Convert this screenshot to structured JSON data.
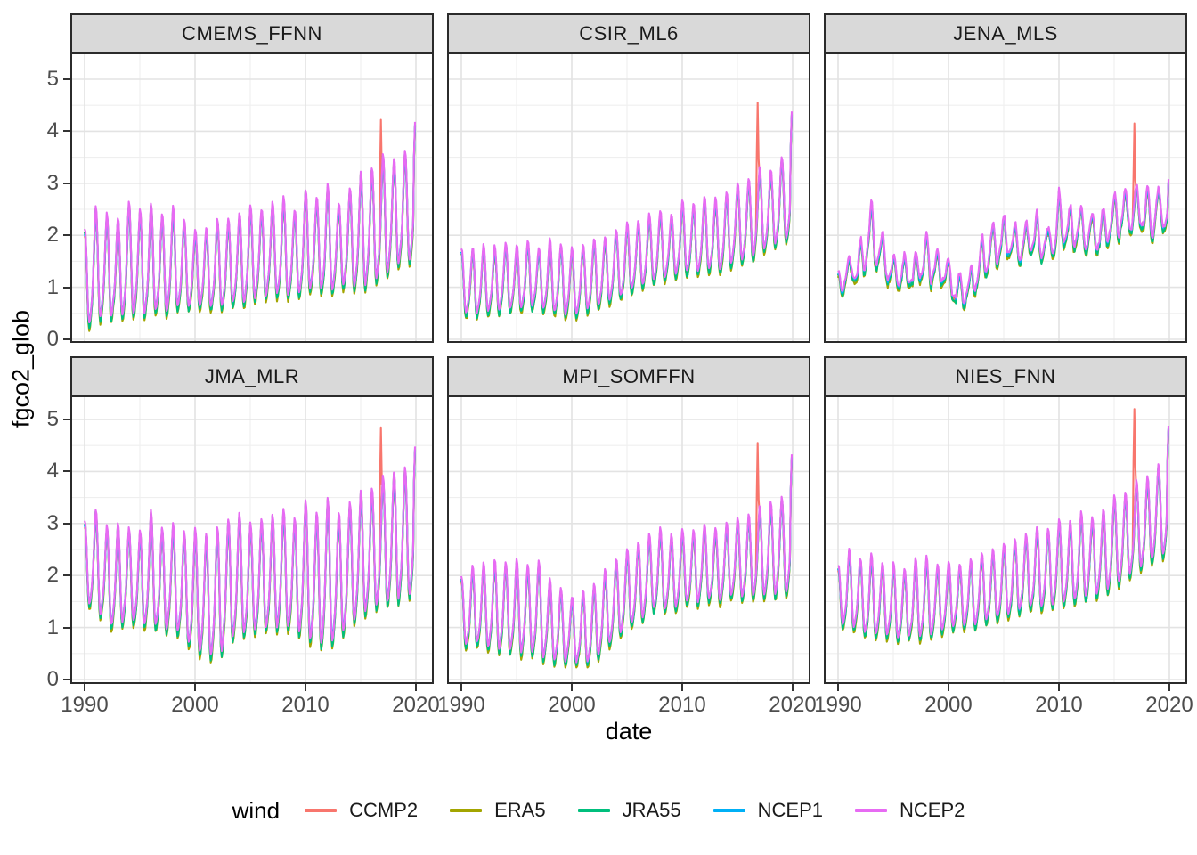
{
  "chart_data": {
    "type": "line",
    "title": "",
    "xlabel": "date",
    "ylabel": "fgco2_glob",
    "x_ticks": [
      1990,
      2000,
      2010,
      2020
    ],
    "x_minor": [
      1995,
      2005,
      2015
    ],
    "y_ticks": [
      0,
      1,
      2,
      3,
      4,
      5
    ],
    "y_minor": [
      0.5,
      1.5,
      2.5,
      3.5,
      4.5,
      5.5
    ],
    "xlim": [
      1988.7,
      2021.6
    ],
    "ylim": [
      -0.07,
      5.51
    ],
    "x_data_range": [
      1990,
      2020
    ],
    "sampling": "monthly",
    "grid": true,
    "legend": {
      "title": "wind",
      "position": "bottom"
    },
    "style": {
      "grid_major": "#E3E3E3",
      "grid_minor": "#EFEFEF",
      "strip_fill": "#D9D9D9",
      "panel_border": "#2B2B2B",
      "tick_color": "#333333",
      "axis_text_color": "#4D4D4D",
      "panel_background": "#FFFFFF"
    },
    "series": [
      {
        "name": "CCMP2",
        "color": "#F8766D",
        "amp_scale": 0.95,
        "offset": -0.05,
        "jitter": 0.03
      },
      {
        "name": "ERA5",
        "color": "#A3A500",
        "amp_scale": 1.04,
        "offset": -0.07,
        "jitter": 0.02
      },
      {
        "name": "JRA55",
        "color": "#00BF7D",
        "amp_scale": 1.02,
        "offset": -0.045,
        "jitter": 0.025
      },
      {
        "name": "NCEP1",
        "color": "#00B0F6",
        "amp_scale": 0.94,
        "offset": -0.005,
        "jitter": 0.015
      },
      {
        "name": "NCEP2",
        "color": "#E76BF3",
        "amp_scale": 1.0,
        "offset": 0.03,
        "jitter": 0.015
      }
    ],
    "facets": [
      {
        "label": "CMEMS_FFNN",
        "annual_max": [
          2.1,
          2.55,
          2.4,
          2.35,
          2.65,
          2.5,
          2.6,
          2.4,
          2.55,
          2.3,
          2.1,
          2.15,
          2.3,
          2.3,
          2.4,
          2.55,
          2.5,
          2.65,
          2.75,
          2.45,
          2.9,
          2.7,
          2.95,
          2.6,
          2.9,
          3.2,
          3.3,
          3.55,
          3.45,
          3.6
        ],
        "annual_min": [
          0.25,
          0.35,
          0.45,
          0.4,
          0.5,
          0.4,
          0.55,
          0.5,
          0.55,
          0.6,
          0.65,
          0.6,
          0.6,
          0.7,
          0.65,
          0.75,
          0.8,
          0.85,
          0.8,
          0.85,
          0.9,
          1.0,
          0.85,
          1.0,
          1.05,
          0.95,
          1.1,
          1.2,
          1.35,
          1.5
        ],
        "spike_value": 4.22,
        "spike_month_index": 322,
        "end_value": 4.15,
        "noise": 0.05,
        "season_weight": 1.0
      },
      {
        "label": "CSIR_ML6",
        "annual_max": [
          1.7,
          1.75,
          1.8,
          1.75,
          1.85,
          1.8,
          1.9,
          1.75,
          1.9,
          1.8,
          1.75,
          1.8,
          1.9,
          2.0,
          2.1,
          2.2,
          2.25,
          2.4,
          2.45,
          2.4,
          2.7,
          2.6,
          2.75,
          2.7,
          2.8,
          3.0,
          3.1,
          3.3,
          3.2,
          3.5
        ],
        "annual_min": [
          0.5,
          0.45,
          0.55,
          0.5,
          0.6,
          0.55,
          0.65,
          0.6,
          0.55,
          0.5,
          0.45,
          0.5,
          0.6,
          0.7,
          0.8,
          0.9,
          1.0,
          1.1,
          1.15,
          1.2,
          1.3,
          1.25,
          1.35,
          1.3,
          1.4,
          1.5,
          1.55,
          1.7,
          1.75,
          1.9
        ],
        "spike_value": 4.55,
        "spike_month_index": 322,
        "end_value": 4.35,
        "noise": 0.05,
        "season_weight": 1.0
      },
      {
        "label": "JENA_MLS",
        "annual_max": [
          1.3,
          1.6,
          1.9,
          2.75,
          2.1,
          1.7,
          1.6,
          1.75,
          2.1,
          1.8,
          1.6,
          1.2,
          1.5,
          2.0,
          2.3,
          2.4,
          2.2,
          2.3,
          2.5,
          2.2,
          2.9,
          2.7,
          2.8,
          2.5,
          2.6,
          2.9,
          3.0,
          3.1,
          2.9,
          3.0
        ],
        "annual_min": [
          0.85,
          1.0,
          1.1,
          1.4,
          1.2,
          1.0,
          0.95,
          1.0,
          1.1,
          1.0,
          0.9,
          0.6,
          0.7,
          1.1,
          1.4,
          1.5,
          1.4,
          1.5,
          1.6,
          1.4,
          1.7,
          1.6,
          1.7,
          1.6,
          1.65,
          1.8,
          1.9,
          2.0,
          1.9,
          2.0
        ],
        "spike_value": 4.15,
        "spike_month_index": 322,
        "end_value": 3.05,
        "noise": 0.18,
        "season_weight": 0.8
      },
      {
        "label": "JMA_MLR",
        "annual_max": [
          3.05,
          3.3,
          2.95,
          3.0,
          2.9,
          2.85,
          3.25,
          2.9,
          3.0,
          2.85,
          2.9,
          2.8,
          2.95,
          3.1,
          3.2,
          3.0,
          3.1,
          3.2,
          3.3,
          3.1,
          3.45,
          3.2,
          3.5,
          3.2,
          3.4,
          3.6,
          3.7,
          3.9,
          4.0,
          4.1
        ],
        "annual_min": [
          1.5,
          1.35,
          1.1,
          1.0,
          1.2,
          0.95,
          1.1,
          0.9,
          1.0,
          0.75,
          0.55,
          0.5,
          0.35,
          0.8,
          0.85,
          0.9,
          1.0,
          0.95,
          1.05,
          0.9,
          0.85,
          0.65,
          0.7,
          0.75,
          1.1,
          1.2,
          1.35,
          1.5,
          1.45,
          1.6
        ],
        "spike_value": 4.85,
        "spike_month_index": 322,
        "end_value": 4.45,
        "noise": 0.05,
        "season_weight": 1.0
      },
      {
        "label": "MPI_SOMFFN",
        "annual_max": [
          1.95,
          2.15,
          2.2,
          2.3,
          2.25,
          2.3,
          2.2,
          2.3,
          1.95,
          1.75,
          1.6,
          1.7,
          1.85,
          2.1,
          2.3,
          2.5,
          2.6,
          2.8,
          2.9,
          2.75,
          2.9,
          2.85,
          2.95,
          2.9,
          3.0,
          3.1,
          3.15,
          3.3,
          3.4,
          3.5
        ],
        "annual_min": [
          0.6,
          0.7,
          0.65,
          0.55,
          0.6,
          0.5,
          0.55,
          0.45,
          0.4,
          0.35,
          0.3,
          0.28,
          0.35,
          0.6,
          0.8,
          1.0,
          1.1,
          1.3,
          1.4,
          1.3,
          1.5,
          1.45,
          1.55,
          1.5,
          1.55,
          1.6,
          1.55,
          1.65,
          1.6,
          1.7
        ],
        "spike_value": 4.55,
        "spike_month_index": 322,
        "end_value": 4.3,
        "noise": 0.05,
        "season_weight": 1.0
      },
      {
        "label": "NIES_FNN",
        "annual_max": [
          2.15,
          2.5,
          2.3,
          2.45,
          2.2,
          2.25,
          2.1,
          2.3,
          2.35,
          2.2,
          2.25,
          2.2,
          2.3,
          2.4,
          2.5,
          2.6,
          2.7,
          2.8,
          2.9,
          2.85,
          3.1,
          3.0,
          3.2,
          3.1,
          3.3,
          3.5,
          3.6,
          3.8,
          3.9,
          4.1
        ],
        "annual_min": [
          1.1,
          1.0,
          0.95,
          0.8,
          0.9,
          0.75,
          0.85,
          0.8,
          0.85,
          0.9,
          1.0,
          1.05,
          1.0,
          1.1,
          1.15,
          1.2,
          1.3,
          1.35,
          1.4,
          1.35,
          1.5,
          1.45,
          1.55,
          1.6,
          1.7,
          1.8,
          1.9,
          2.1,
          2.2,
          2.4
        ],
        "spike_value": 5.2,
        "spike_month_index": 322,
        "end_value": 4.85,
        "noise": 0.05,
        "season_weight": 1.0
      }
    ]
  }
}
